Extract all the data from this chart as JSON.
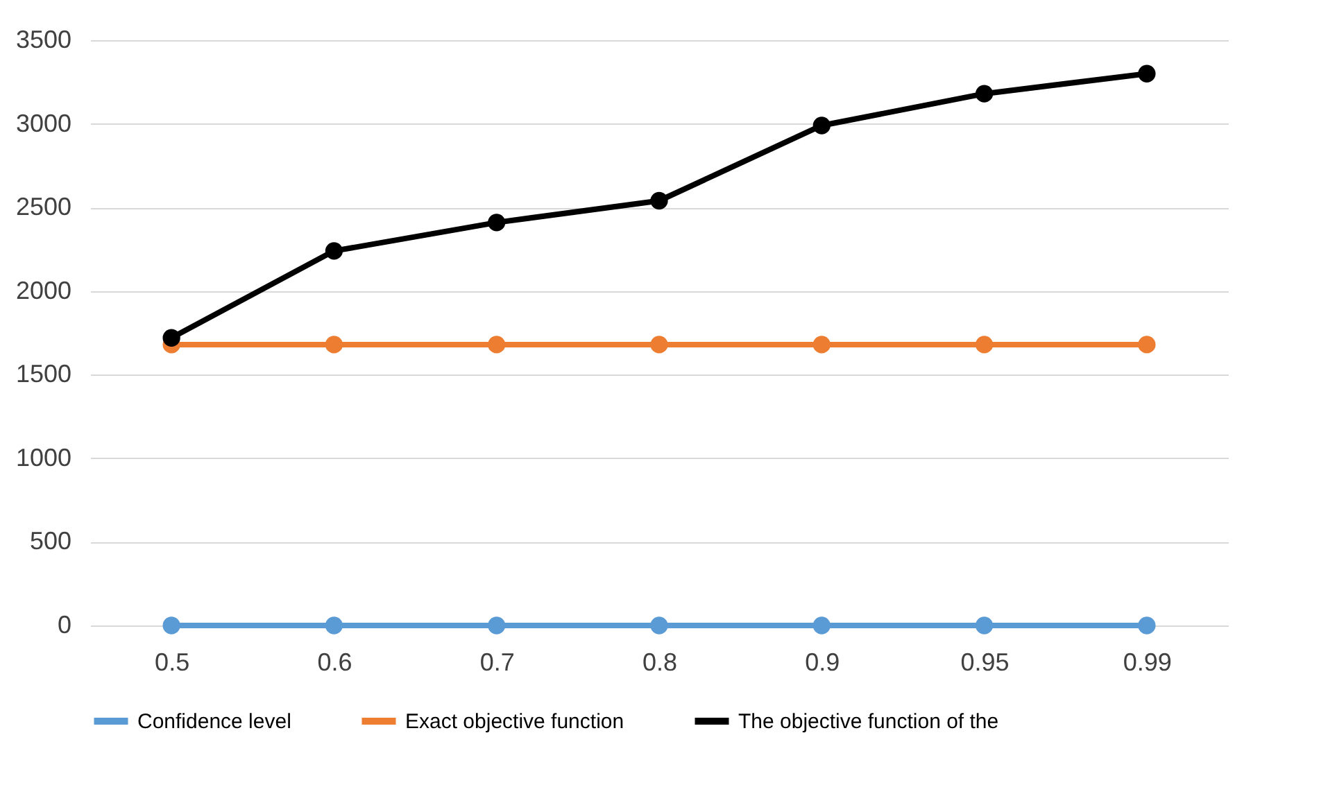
{
  "chart_data": {
    "type": "line",
    "categories": [
      "0.5",
      "0.6",
      "0.7",
      "0.8",
      "0.9",
      "0.95",
      "0.99"
    ],
    "series": [
      {
        "name": "Confidence level",
        "color": "#5b9bd5",
        "values": [
          0,
          0,
          0,
          0,
          0,
          0,
          0
        ]
      },
      {
        "name": "Exact objective function",
        "color": "#ed7d31",
        "values": [
          1680,
          1680,
          1680,
          1680,
          1680,
          1680,
          1680
        ]
      },
      {
        "name": "The objective function of the",
        "color": "#000000",
        "values": [
          1720,
          2240,
          2410,
          2540,
          2990,
          3180,
          3300
        ]
      }
    ],
    "ylim": [
      0,
      3500
    ],
    "yticks": [
      0,
      500,
      1000,
      1500,
      2000,
      2500,
      3000,
      3500
    ],
    "grid": "y",
    "legend": "bottom",
    "marker": "circle",
    "line_style": "solid"
  }
}
